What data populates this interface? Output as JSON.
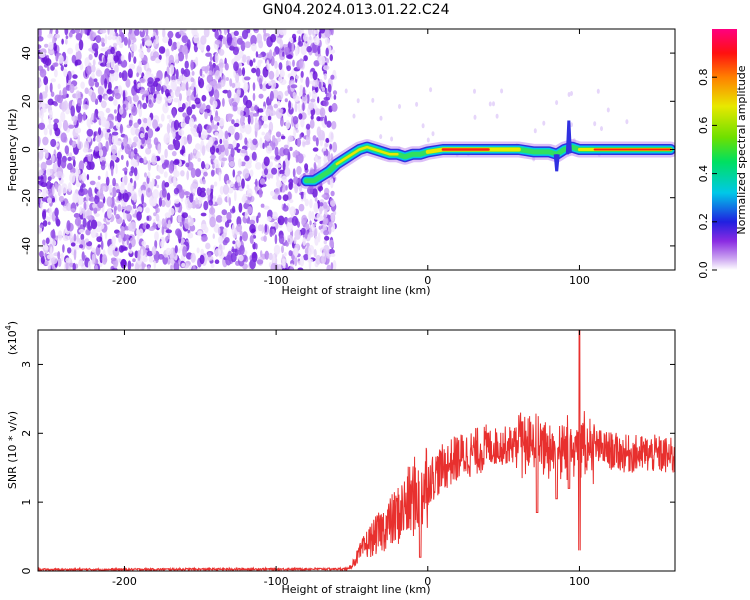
{
  "figure_title": "GN04.2024.013.01.22.C24",
  "chart_data": [
    {
      "type": "heatmap",
      "title": "GN04.2024.013.01.22.C24",
      "xlabel": "Height of straight line (km)",
      "ylabel": "Frequency (Hz)",
      "xlim": [
        -257,
        163
      ],
      "ylim": [
        -50,
        50
      ],
      "x_ticks": [
        -200,
        -100,
        0,
        100
      ],
      "y_ticks": [
        -40,
        -20,
        0,
        20,
        40
      ],
      "x_tick_labels": [
        "-200",
        "-100",
        "0",
        "100"
      ],
      "y_tick_labels": [
        "-40",
        "-20",
        "0",
        "20",
        "40"
      ],
      "grid": false,
      "noise_region_x": [
        -257,
        -65
      ],
      "signal_track": {
        "x": [
          -80,
          -75,
          -70,
          -65,
          -60,
          -55,
          -50,
          -45,
          -40,
          -35,
          -30,
          -25,
          -20,
          -15,
          -10,
          -5,
          0,
          10,
          20,
          40,
          60,
          70,
          80,
          85,
          90,
          95,
          100,
          110,
          120,
          130,
          140,
          150,
          160
        ],
        "y": [
          -13,
          -13,
          -11,
          -9,
          -6,
          -4,
          -2,
          0,
          1,
          0,
          -1,
          -2,
          -2,
          -3,
          -2,
          -2,
          -1,
          0,
          0,
          0,
          0,
          -1,
          -1,
          -2,
          0,
          1,
          0,
          0,
          0,
          0,
          0,
          0,
          0
        ]
      },
      "colorbar": {
        "label": "Normalized spectral amplitude",
        "range": [
          0,
          1
        ],
        "ticks": [
          "0.0",
          "0.2",
          "0.4",
          "0.6",
          "0.8"
        ]
      }
    },
    {
      "type": "line",
      "title": "",
      "xlabel": "Height of straight line (km)",
      "ylabel": "SNR (10 * v/v)",
      "multiplier_label": "(x10",
      "multiplier_exp": "4",
      "multiplier_close": ")",
      "xlim": [
        -257,
        163
      ],
      "ylim": [
        0,
        3.5
      ],
      "x_ticks": [
        -200,
        -100,
        0,
        100
      ],
      "y_ticks": [
        0,
        1,
        2,
        3
      ],
      "x_tick_labels": [
        "-200",
        "-100",
        "0",
        "100"
      ],
      "y_tick_labels": [
        "0",
        "1",
        "2",
        "3"
      ],
      "grid": false,
      "line_color": "#e8302e",
      "series": [
        {
          "envelope_x": [
            -257,
            -52,
            -45,
            -40,
            -30,
            -20,
            -10,
            0,
            10,
            20,
            30,
            40,
            50,
            60,
            70,
            80,
            90,
            95,
            100,
            105,
            110,
            120,
            130,
            140,
            150,
            163
          ],
          "envelope_y": [
            0.02,
            0.03,
            0.25,
            0.4,
            0.6,
            0.8,
            1.05,
            1.3,
            1.5,
            1.65,
            1.72,
            1.8,
            1.82,
            1.85,
            1.85,
            1.8,
            1.75,
            1.9,
            1.85,
            1.75,
            1.8,
            1.75,
            1.7,
            1.7,
            1.7,
            1.65
          ],
          "peak_x": 100,
          "peak_y": 3.5,
          "dip_x": [
            -5,
            72,
            85,
            93,
            100
          ],
          "dip_y": [
            0.2,
            0.85,
            1.05,
            1.2,
            0.3
          ]
        }
      ]
    }
  ],
  "colors": {
    "axis": "#000000",
    "noise": "#7b1fe0",
    "line": "#e8302e",
    "background": "#ffffff"
  }
}
